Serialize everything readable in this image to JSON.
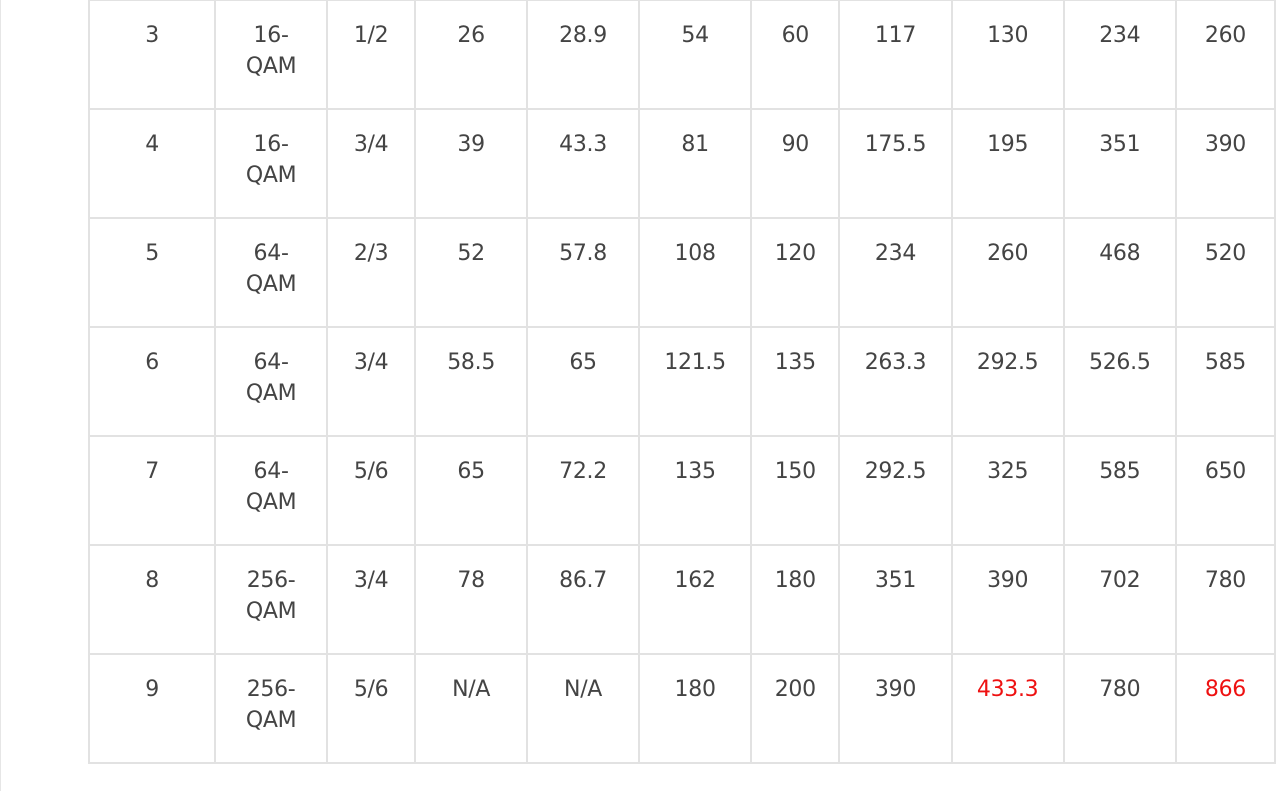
{
  "rows": [
    {
      "index": "3",
      "modulation": "16-QAM",
      "coding": "1/2",
      "values": [
        "26",
        "28.9",
        "54",
        "60",
        "117",
        "130",
        "234",
        "260"
      ]
    },
    {
      "index": "4",
      "modulation": "16-QAM",
      "coding": "3/4",
      "values": [
        "39",
        "43.3",
        "81",
        "90",
        "175.5",
        "195",
        "351",
        "390"
      ]
    },
    {
      "index": "5",
      "modulation": "64-QAM",
      "coding": "2/3",
      "values": [
        "52",
        "57.8",
        "108",
        "120",
        "234",
        "260",
        "468",
        "520"
      ]
    },
    {
      "index": "6",
      "modulation": "64-QAM",
      "coding": "3/4",
      "values": [
        "58.5",
        "65",
        "121.5",
        "135",
        "263.3",
        "292.5",
        "526.5",
        "585"
      ]
    },
    {
      "index": "7",
      "modulation": "64-QAM",
      "coding": "5/6",
      "values": [
        "65",
        "72.2",
        "135",
        "150",
        "292.5",
        "325",
        "585",
        "650"
      ]
    },
    {
      "index": "8",
      "modulation": "256-QAM",
      "coding": "3/4",
      "values": [
        "78",
        "86.7",
        "162",
        "180",
        "351",
        "390",
        "702",
        "780"
      ]
    },
    {
      "index": "9",
      "modulation": "256-QAM",
      "coding": "5/6",
      "values": [
        "N/A",
        "N/A",
        "180",
        "200",
        "390",
        "433.3",
        "780",
        "866"
      ],
      "highlighted": [
        5,
        7
      ]
    }
  ],
  "colors": {
    "text": "#444444",
    "border": "#e2e2e2",
    "highlight": "#ee1111"
  }
}
